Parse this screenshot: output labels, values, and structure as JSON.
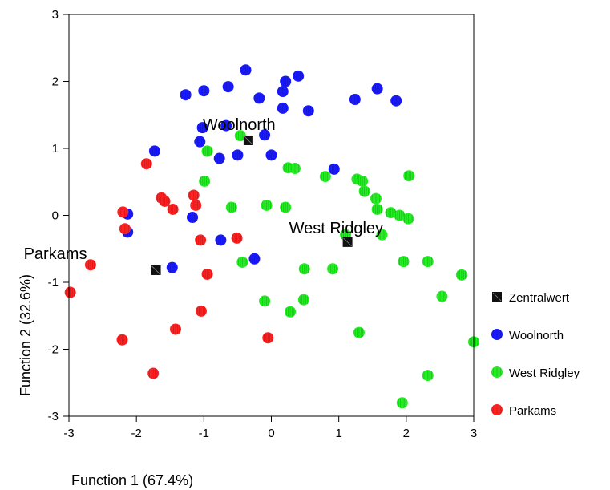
{
  "chart_data": {
    "type": "scatter",
    "xlabel": "Function 1 (67.4%)",
    "ylabel": "Function 2 (32.6%)",
    "xlim": [
      -3,
      3
    ],
    "ylim": [
      -3,
      3
    ],
    "xticks": [
      "-3",
      "-2",
      "-1",
      "0",
      "1",
      "2",
      "3"
    ],
    "yticks": [
      "-3",
      "-2",
      "-1",
      "0",
      "1",
      "2",
      "3"
    ],
    "grid": false,
    "legend": "right",
    "colors": {
      "Zentralwert": "#111111",
      "Woolnorth": "#1a1aff",
      "West Ridgley": "#22ee22",
      "Parkams": "#ff2222"
    },
    "centroid_labels": [
      {
        "text": "Woolnorth",
        "x": -0.34,
        "y": 1.12
      },
      {
        "text": "West Ridgley",
        "x": 1.13,
        "y": -0.4
      },
      {
        "text": "Parkams",
        "x": -1.71,
        "y": -0.82
      }
    ],
    "series": [
      {
        "name": "Zentralwert",
        "marker": "square",
        "points": [
          [
            -0.34,
            1.12
          ],
          [
            1.13,
            -0.4
          ],
          [
            -1.71,
            -0.82
          ]
        ]
      },
      {
        "name": "Woolnorth",
        "marker": "circle",
        "points": [
          [
            -0.38,
            2.17
          ],
          [
            0.4,
            2.08
          ],
          [
            0.21,
            2.0
          ],
          [
            0.17,
            1.85
          ],
          [
            1.57,
            1.89
          ],
          [
            -0.64,
            1.92
          ],
          [
            -1.0,
            1.86
          ],
          [
            -1.27,
            1.8
          ],
          [
            -0.18,
            1.75
          ],
          [
            1.24,
            1.73
          ],
          [
            1.85,
            1.71
          ],
          [
            0.17,
            1.6
          ],
          [
            0.55,
            1.56
          ],
          [
            -1.02,
            1.31
          ],
          [
            -0.67,
            1.34
          ],
          [
            -0.1,
            1.2
          ],
          [
            -1.06,
            1.1
          ],
          [
            -1.73,
            0.96
          ],
          [
            -0.5,
            0.9
          ],
          [
            0.0,
            0.9
          ],
          [
            -0.77,
            0.85
          ],
          [
            0.93,
            0.69
          ],
          [
            -2.13,
            0.02
          ],
          [
            -1.17,
            -0.03
          ],
          [
            -2.13,
            -0.25
          ],
          [
            -0.75,
            -0.37
          ],
          [
            -0.25,
            -0.65
          ],
          [
            -1.47,
            -0.78
          ]
        ]
      },
      {
        "name": "West Ridgley",
        "marker": "circle",
        "points": [
          [
            -0.46,
            1.19
          ],
          [
            -0.95,
            0.96
          ],
          [
            0.25,
            0.71
          ],
          [
            0.35,
            0.7
          ],
          [
            0.8,
            0.58
          ],
          [
            1.27,
            0.54
          ],
          [
            1.35,
            0.51
          ],
          [
            -0.99,
            0.51
          ],
          [
            2.04,
            0.59
          ],
          [
            1.38,
            0.36
          ],
          [
            1.55,
            0.25
          ],
          [
            -0.07,
            0.15
          ],
          [
            -0.59,
            0.12
          ],
          [
            0.21,
            0.12
          ],
          [
            1.57,
            0.09
          ],
          [
            1.77,
            0.04
          ],
          [
            1.9,
            0.0
          ],
          [
            2.03,
            -0.05
          ],
          [
            1.1,
            -0.29
          ],
          [
            1.64,
            -0.29
          ],
          [
            -0.43,
            -0.7
          ],
          [
            1.96,
            -0.69
          ],
          [
            2.32,
            -0.69
          ],
          [
            0.49,
            -0.8
          ],
          [
            0.91,
            -0.8
          ],
          [
            2.82,
            -0.89
          ],
          [
            -0.1,
            -1.28
          ],
          [
            0.48,
            -1.26
          ],
          [
            2.53,
            -1.21
          ],
          [
            0.28,
            -1.44
          ],
          [
            1.3,
            -1.75
          ],
          [
            3.0,
            -1.89
          ],
          [
            2.32,
            -2.39
          ],
          [
            1.94,
            -2.8
          ]
        ]
      },
      {
        "name": "Parkams",
        "marker": "circle",
        "points": [
          [
            -1.85,
            0.77
          ],
          [
            -1.63,
            0.26
          ],
          [
            -1.58,
            0.21
          ],
          [
            -1.15,
            0.3
          ],
          [
            -1.12,
            0.15
          ],
          [
            -2.2,
            0.05
          ],
          [
            -1.46,
            0.09
          ],
          [
            -2.17,
            -0.2
          ],
          [
            -1.05,
            -0.37
          ],
          [
            -0.51,
            -0.34
          ],
          [
            -2.68,
            -0.74
          ],
          [
            -0.95,
            -0.88
          ],
          [
            -2.98,
            -1.15
          ],
          [
            -1.04,
            -1.43
          ],
          [
            -1.42,
            -1.7
          ],
          [
            -0.05,
            -1.83
          ],
          [
            -2.21,
            -1.86
          ],
          [
            -1.75,
            -2.36
          ]
        ]
      }
    ]
  }
}
